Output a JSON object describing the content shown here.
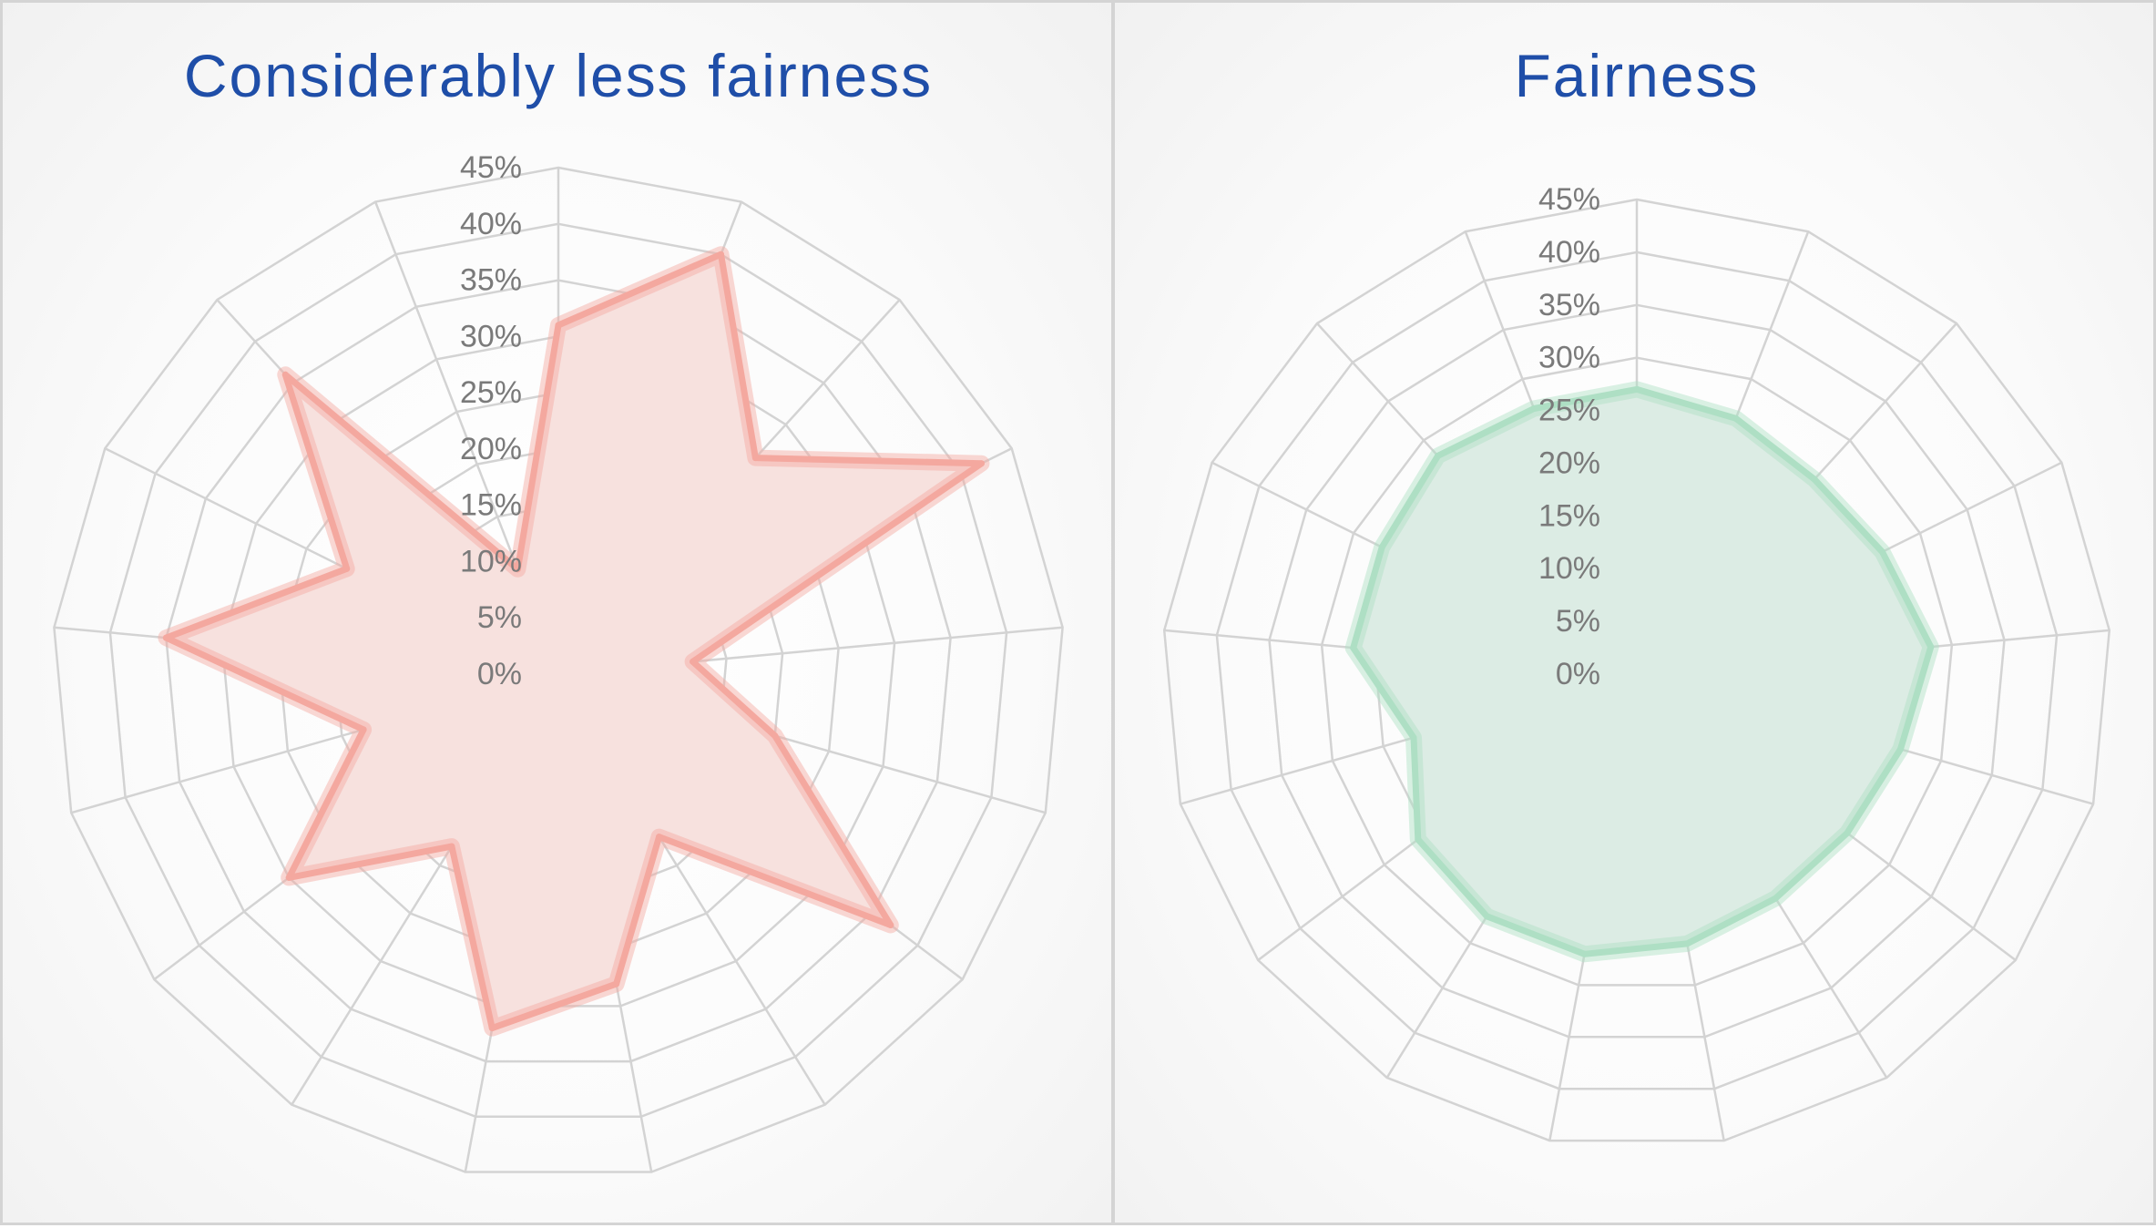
{
  "chart_data": [
    {
      "type": "radar",
      "title": "Considerably less fairness",
      "ticks": [
        "0%",
        "5%",
        "10%",
        "15%",
        "20%",
        "25%",
        "30%",
        "35%",
        "40%",
        "45%"
      ],
      "range": [
        0,
        45
      ],
      "categories": 17,
      "values": [
        31,
        40,
        26,
        42,
        12,
        20,
        37,
        17,
        28,
        32,
        18,
        30,
        18,
        35,
        21,
        36,
        10
      ],
      "fill_color": "#f7e1de",
      "line_color": "#f4a89f",
      "grid": true
    },
    {
      "type": "radar",
      "title": "Fairness",
      "ticks": [
        "0%",
        "5%",
        "10%",
        "15%",
        "20%",
        "25%",
        "30%",
        "35%",
        "40%",
        "45%"
      ],
      "range": [
        0,
        45
      ],
      "categories": 17,
      "values": [
        27,
        26,
        25,
        26,
        28,
        26,
        25,
        25,
        26,
        27,
        27,
        26,
        22,
        27,
        27,
        28,
        27
      ],
      "fill_color": "#dcece4",
      "line_color": "#aedfc4",
      "grid": true
    }
  ]
}
